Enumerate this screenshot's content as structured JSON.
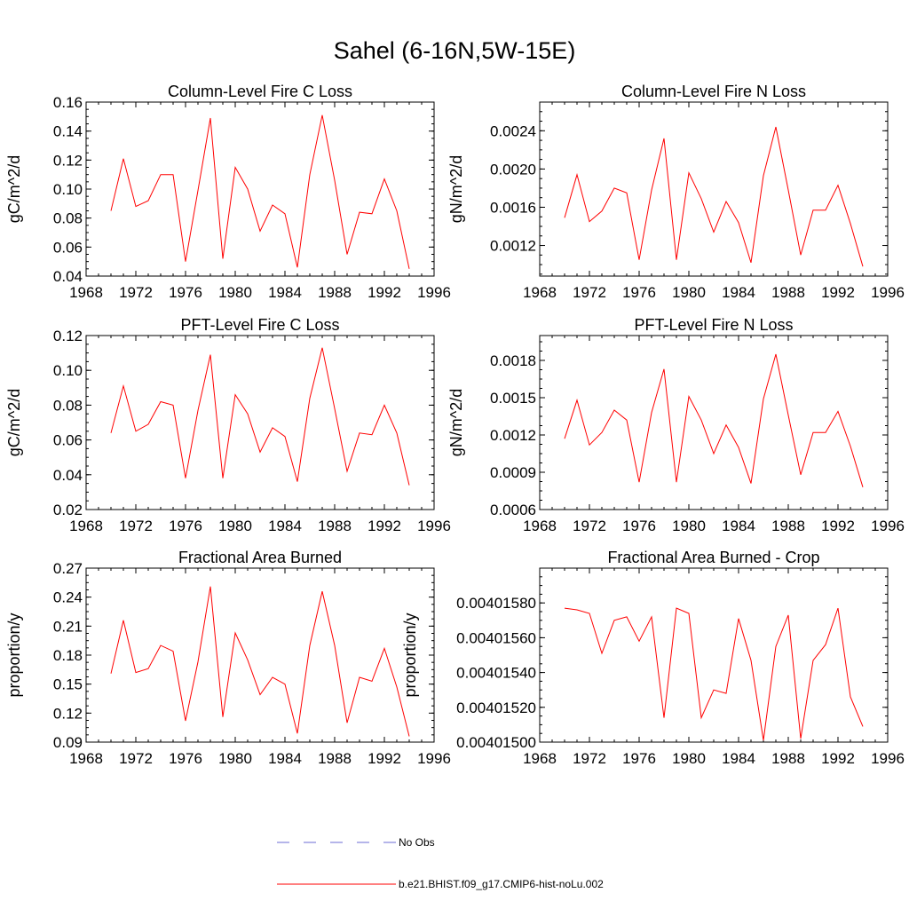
{
  "figure_title": "Sahel (6-16N,5W-15E)",
  "legend": {
    "items": [
      {
        "label": "No Obs",
        "color": "#6b6bd6",
        "style": "dashed"
      },
      {
        "label": "b.e21.BHIST.f09_g17.CMIP6-hist-noLu.002",
        "color": "#ff0000",
        "style": "solid"
      }
    ]
  },
  "chart_data": [
    {
      "type": "line",
      "title": "Column-Level Fire C Loss",
      "xlabel": "",
      "ylabel": "gC/m^2/d",
      "xlim": [
        1968,
        1996
      ],
      "ylim": [
        0.04,
        0.16
      ],
      "xticks": [
        1968,
        1972,
        1976,
        1980,
        1984,
        1988,
        1992,
        1996
      ],
      "xtick_labels": [
        "1968",
        "1972",
        "1976",
        "1980",
        "1984",
        "1988",
        "1992",
        "1996"
      ],
      "yticks": [
        0.04,
        0.06,
        0.08,
        0.1,
        0.12,
        0.14,
        0.16
      ],
      "ytick_labels": [
        "0.04",
        "0.06",
        "0.08",
        "0.10",
        "0.12",
        "0.14",
        "0.16"
      ],
      "x": [
        1970,
        1971,
        1972,
        1973,
        1974,
        1975,
        1976,
        1977,
        1978,
        1979,
        1980,
        1981,
        1982,
        1983,
        1984,
        1985,
        1986,
        1987,
        1988,
        1989,
        1990,
        1991,
        1992,
        1993,
        1994
      ],
      "series": [
        {
          "color": "#ff0000",
          "values": [
            0.085,
            0.121,
            0.088,
            0.092,
            0.11,
            0.11,
            0.05,
            0.099,
            0.149,
            0.052,
            0.115,
            0.1,
            0.071,
            0.089,
            0.083,
            0.046,
            0.11,
            0.151,
            0.106,
            0.055,
            0.084,
            0.083,
            0.107,
            0.085,
            0.045
          ]
        }
      ]
    },
    {
      "type": "line",
      "title": "Column-Level Fire N Loss",
      "xlabel": "",
      "ylabel": "gN/m^2/d",
      "xlim": [
        1968,
        1996
      ],
      "ylim": [
        0.00088,
        0.0027
      ],
      "xticks": [
        1968,
        1972,
        1976,
        1980,
        1984,
        1988,
        1992,
        1996
      ],
      "xtick_labels": [
        "1968",
        "1972",
        "1976",
        "1980",
        "1984",
        "1988",
        "1992",
        "1996"
      ],
      "yticks": [
        0.0012,
        0.0016,
        0.002,
        0.0024
      ],
      "ytick_labels": [
        "0.0012",
        "0.0016",
        "0.0020",
        "0.0024"
      ],
      "x": [
        1970,
        1971,
        1972,
        1973,
        1974,
        1975,
        1976,
        1977,
        1978,
        1979,
        1980,
        1981,
        1982,
        1983,
        1984,
        1985,
        1986,
        1987,
        1988,
        1989,
        1990,
        1991,
        1992,
        1993,
        1994
      ],
      "series": [
        {
          "color": "#ff0000",
          "values": [
            0.00149,
            0.00194,
            0.00145,
            0.00156,
            0.0018,
            0.00175,
            0.00105,
            0.00178,
            0.00232,
            0.00105,
            0.00196,
            0.00169,
            0.00134,
            0.00166,
            0.00144,
            0.00102,
            0.00193,
            0.00244,
            0.00178,
            0.0011,
            0.00157,
            0.00157,
            0.00183,
            0.00143,
            0.00098
          ]
        }
      ]
    },
    {
      "type": "line",
      "title": "PFT-Level Fire C Loss",
      "xlabel": "",
      "ylabel": "gC/m^2/d",
      "xlim": [
        1968,
        1996
      ],
      "ylim": [
        0.02,
        0.12
      ],
      "xticks": [
        1968,
        1972,
        1976,
        1980,
        1984,
        1988,
        1992,
        1996
      ],
      "xtick_labels": [
        "1968",
        "1972",
        "1976",
        "1980",
        "1984",
        "1988",
        "1992",
        "1996"
      ],
      "yticks": [
        0.02,
        0.04,
        0.06,
        0.08,
        0.1,
        0.12
      ],
      "ytick_labels": [
        "0.02",
        "0.04",
        "0.06",
        "0.08",
        "0.10",
        "0.12"
      ],
      "x": [
        1970,
        1971,
        1972,
        1973,
        1974,
        1975,
        1976,
        1977,
        1978,
        1979,
        1980,
        1981,
        1982,
        1983,
        1984,
        1985,
        1986,
        1987,
        1988,
        1989,
        1990,
        1991,
        1992,
        1993,
        1994
      ],
      "series": [
        {
          "color": "#ff0000",
          "values": [
            0.064,
            0.091,
            0.065,
            0.069,
            0.082,
            0.08,
            0.038,
            0.077,
            0.109,
            0.038,
            0.086,
            0.075,
            0.053,
            0.067,
            0.062,
            0.036,
            0.084,
            0.113,
            0.078,
            0.042,
            0.064,
            0.063,
            0.08,
            0.064,
            0.034
          ]
        }
      ]
    },
    {
      "type": "line",
      "title": "PFT-Level Fire N Loss",
      "xlabel": "",
      "ylabel": "gN/m^2/d",
      "xlim": [
        1968,
        1996
      ],
      "ylim": [
        0.0006,
        0.002
      ],
      "xticks": [
        1968,
        1972,
        1976,
        1980,
        1984,
        1988,
        1992,
        1996
      ],
      "xtick_labels": [
        "1968",
        "1972",
        "1976",
        "1980",
        "1984",
        "1988",
        "1992",
        "1996"
      ],
      "yticks": [
        0.0006,
        0.0009,
        0.0012,
        0.0015,
        0.0018
      ],
      "ytick_labels": [
        "0.0006",
        "0.0009",
        "0.0012",
        "0.0015",
        "0.0018"
      ],
      "x": [
        1970,
        1971,
        1972,
        1973,
        1974,
        1975,
        1976,
        1977,
        1978,
        1979,
        1980,
        1981,
        1982,
        1983,
        1984,
        1985,
        1986,
        1987,
        1988,
        1989,
        1990,
        1991,
        1992,
        1993,
        1994
      ],
      "series": [
        {
          "color": "#ff0000",
          "values": [
            0.00117,
            0.00148,
            0.00112,
            0.00122,
            0.0014,
            0.00132,
            0.00082,
            0.00138,
            0.00173,
            0.00082,
            0.00151,
            0.00132,
            0.00105,
            0.00128,
            0.0011,
            0.00081,
            0.00149,
            0.00185,
            0.00136,
            0.00088,
            0.00122,
            0.00122,
            0.00139,
            0.00111,
            0.00078
          ]
        }
      ]
    },
    {
      "type": "line",
      "title": "Fractional Area Burned",
      "xlabel": "",
      "ylabel": "proportion/y",
      "xlim": [
        1968,
        1996
      ],
      "ylim": [
        0.09,
        0.27
      ],
      "xticks": [
        1968,
        1972,
        1976,
        1980,
        1984,
        1988,
        1992,
        1996
      ],
      "xtick_labels": [
        "1968",
        "1972",
        "1976",
        "1980",
        "1984",
        "1988",
        "1992",
        "1996"
      ],
      "yticks": [
        0.09,
        0.12,
        0.15,
        0.18,
        0.21,
        0.24,
        0.27
      ],
      "ytick_labels": [
        "0.09",
        "0.12",
        "0.15",
        "0.18",
        "0.21",
        "0.24",
        "0.27"
      ],
      "x": [
        1970,
        1971,
        1972,
        1973,
        1974,
        1975,
        1976,
        1977,
        1978,
        1979,
        1980,
        1981,
        1982,
        1983,
        1984,
        1985,
        1986,
        1987,
        1988,
        1989,
        1990,
        1991,
        1992,
        1993,
        1994
      ],
      "series": [
        {
          "color": "#ff0000",
          "values": [
            0.161,
            0.216,
            0.162,
            0.166,
            0.19,
            0.184,
            0.112,
            0.173,
            0.251,
            0.116,
            0.203,
            0.175,
            0.139,
            0.157,
            0.15,
            0.099,
            0.19,
            0.246,
            0.19,
            0.11,
            0.157,
            0.153,
            0.187,
            0.147,
            0.096
          ]
        }
      ]
    },
    {
      "type": "line",
      "title": "Fractional Area Burned - Crop",
      "xlabel": "",
      "ylabel": "proportion/y",
      "xlim": [
        1968,
        1996
      ],
      "ylim": [
        0.004015,
        0.004016
      ],
      "xticks": [
        1968,
        1972,
        1976,
        1980,
        1984,
        1988,
        1992,
        1996
      ],
      "xtick_labels": [
        "1968",
        "1972",
        "1976",
        "1980",
        "1984",
        "1988",
        "1992",
        "1996"
      ],
      "yticks": [
        0.004015,
        0.0040152,
        0.0040154,
        0.0040156,
        0.0040158
      ],
      "ytick_labels": [
        "0.00401500",
        "0.00401520",
        "0.00401540",
        "0.00401560",
        "0.00401580"
      ],
      "x": [
        1970,
        1971,
        1972,
        1973,
        1974,
        1975,
        1976,
        1977,
        1978,
        1979,
        1980,
        1981,
        1982,
        1983,
        1984,
        1985,
        1986,
        1987,
        1988,
        1989,
        1990,
        1991,
        1992,
        1993,
        1994
      ],
      "series": [
        {
          "color": "#ff0000",
          "values": [
            0.00401577,
            0.00401576,
            0.00401574,
            0.00401551,
            0.0040157,
            0.00401572,
            0.00401558,
            0.00401572,
            0.00401514,
            0.00401577,
            0.00401574,
            0.00401514,
            0.0040153,
            0.00401528,
            0.00401571,
            0.00401547,
            0.00401501,
            0.00401555,
            0.00401573,
            0.00401502,
            0.00401547,
            0.00401556,
            0.00401577,
            0.00401526,
            0.00401509
          ]
        }
      ]
    }
  ]
}
